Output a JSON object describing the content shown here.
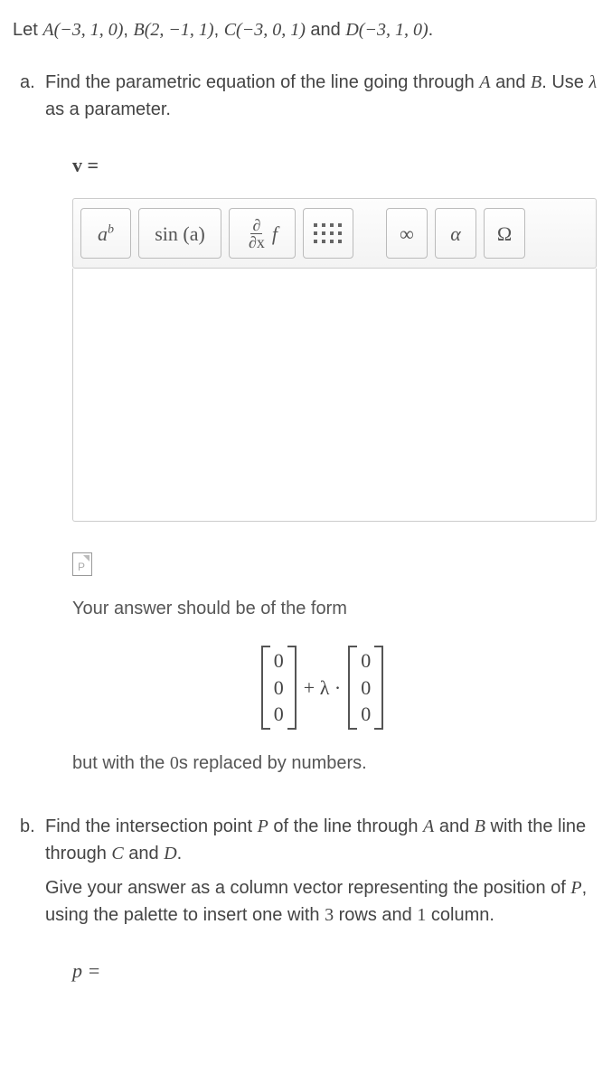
{
  "intro": {
    "prefix": "Let ",
    "A": "A(−3, 1, 0)",
    "B": "B(2, −1, 1)",
    "C": "C(−3, 0, 1)",
    "and_word": " and ",
    "D": "D(−3, 1, 0)",
    "suffix": "."
  },
  "part_a": {
    "marker": "a.",
    "text_before": "Find the parametric equation of the line going through ",
    "A": "A",
    "and": " and ",
    "B": "B",
    "text_after1": ". Use ",
    "lambda": "λ",
    "text_after2": " as a parameter.",
    "v_label": "v =",
    "toolbar": {
      "ab_base": "a",
      "ab_sup": "b",
      "sin": "sin (a)",
      "partial_num": "∂",
      "partial_den": "∂x",
      "partial_f": "f",
      "infty": "∞",
      "alpha": "α",
      "omega": "Ω"
    },
    "hint_text": "Your answer should be of the form",
    "vector_entry": "0",
    "plus_lambda": "+ λ ·",
    "hint2_before": "but with the ",
    "zeros": "0",
    "hint2_after": "s replaced by numbers."
  },
  "part_b": {
    "marker": "b.",
    "line1_a": "Find the intersection point ",
    "P": "P",
    "line1_b": " of the line through ",
    "A": "A",
    "and1": " and ",
    "B": "B",
    "with": " with the line through ",
    "C": "C",
    "and2": " and ",
    "D": "D",
    "period": ".",
    "line2_a": "Give your answer as a column vector representing the position of ",
    "P2": "P",
    "line2_b": ", using the palette to insert one with ",
    "three": "3",
    "rows": " rows and ",
    "one": "1",
    "col": " column.",
    "p_label": "p ="
  },
  "colors": {
    "text": "#444444",
    "border": "#cccccc",
    "btn_border": "#bbbbbb",
    "bg": "#ffffff"
  }
}
